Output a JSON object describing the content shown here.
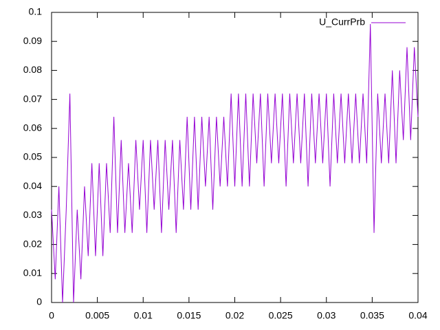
{
  "chart_data": {
    "type": "line",
    "x": [
      0,
      0.0004,
      0.0008,
      0.0012,
      0.0016,
      0.002,
      0.0024,
      0.0028,
      0.0032,
      0.0036,
      0.004,
      0.0044,
      0.0048,
      0.0052,
      0.0056,
      0.006,
      0.0064,
      0.0068,
      0.0072,
      0.0076,
      0.008,
      0.0084,
      0.0088,
      0.0092,
      0.0096,
      0.01,
      0.0104,
      0.0108,
      0.0112,
      0.0116,
      0.012,
      0.0124,
      0.0128,
      0.0132,
      0.0136,
      0.014,
      0.0144,
      0.0148,
      0.0152,
      0.0156,
      0.016,
      0.0164,
      0.0168,
      0.0172,
      0.0176,
      0.018,
      0.0184,
      0.0188,
      0.0192,
      0.0196,
      0.02,
      0.0204,
      0.0208,
      0.0212,
      0.0216,
      0.022,
      0.0224,
      0.0228,
      0.0232,
      0.0236,
      0.024,
      0.0244,
      0.0248,
      0.0252,
      0.0256,
      0.026,
      0.0264,
      0.0268,
      0.0272,
      0.0276,
      0.028,
      0.0284,
      0.0288,
      0.0292,
      0.0296,
      0.03,
      0.0304,
      0.0308,
      0.0312,
      0.0316,
      0.032,
      0.0324,
      0.0328,
      0.0332,
      0.0336,
      0.034,
      0.0344,
      0.0348,
      0.0352,
      0.0356,
      0.036,
      0.0364,
      0.0368,
      0.0372,
      0.0376,
      0.038,
      0.0384,
      0.0388,
      0.0392,
      0.0396,
      0.04
    ],
    "series": [
      {
        "name": "U_CurrPrb",
        "color": "#9400d3",
        "values": [
          0.032,
          0.008,
          0.04,
          0,
          0.032,
          0.072,
          0,
          0.032,
          0.008,
          0.04,
          0.016,
          0.048,
          0.016,
          0.048,
          0.016,
          0.048,
          0.024,
          0.064,
          0.024,
          0.056,
          0.024,
          0.048,
          0.024,
          0.056,
          0.032,
          0.056,
          0.024,
          0.056,
          0.032,
          0.056,
          0.024,
          0.056,
          0.032,
          0.056,
          0.024,
          0.056,
          0.032,
          0.064,
          0.032,
          0.064,
          0.032,
          0.064,
          0.04,
          0.064,
          0.032,
          0.064,
          0.04,
          0.064,
          0.04,
          0.072,
          0.04,
          0.072,
          0.04,
          0.072,
          0.04,
          0.072,
          0.048,
          0.072,
          0.04,
          0.072,
          0.048,
          0.072,
          0.048,
          0.072,
          0.04,
          0.072,
          0.048,
          0.072,
          0.048,
          0.072,
          0.04,
          0.072,
          0.048,
          0.072,
          0.048,
          0.072,
          0.04,
          0.072,
          0.048,
          0.072,
          0.048,
          0.072,
          0.048,
          0.072,
          0.048,
          0.072,
          0.048,
          0.096,
          0.024,
          0.072,
          0.048,
          0.072,
          0.048,
          0.08,
          0.048,
          0.08,
          0.056,
          0.088,
          0.056,
          0.088,
          0.064
        ]
      }
    ],
    "xlim": [
      0,
      0.04
    ],
    "xticks": [
      0,
      0.005,
      0.01,
      0.015,
      0.02,
      0.025,
      0.03,
      0.035,
      0.04
    ],
    "ylim": [
      0,
      0.1
    ],
    "yticks": [
      0,
      0.01,
      0.02,
      0.03,
      0.04,
      0.05,
      0.06,
      0.07,
      0.08,
      0.09,
      0.1
    ],
    "legend": "top-right"
  }
}
